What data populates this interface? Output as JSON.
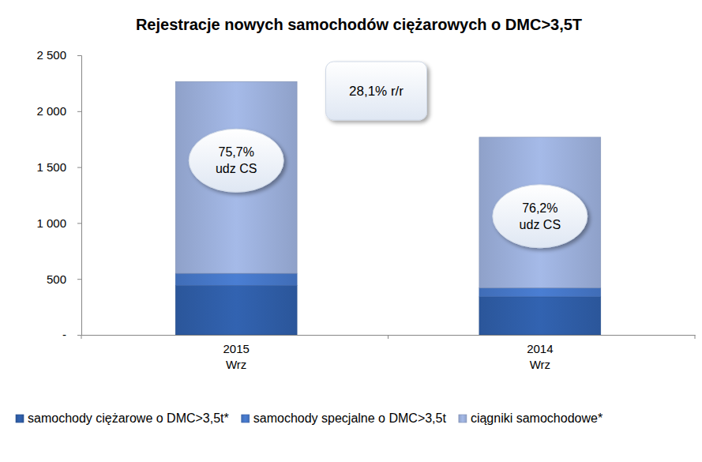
{
  "chart_data": {
    "type": "bar",
    "title": "Rejestracje nowych samochodów ciężarowych o DMC>3,5T",
    "categories": [
      "2015\nWrz",
      "2014\nWrz"
    ],
    "stacked": true,
    "grid": false,
    "legend": "bottom",
    "series": [
      {
        "name": "samochody ciężarowe o DMC>3,5t*",
        "color": "#2f5ea8",
        "values": [
          440,
          340
        ]
      },
      {
        "name": "samochody specjalne o DMC>3,5t",
        "color": "#4677c8",
        "values": [
          110,
          80
        ]
      },
      {
        "name": "ciągniki samochodowe*",
        "color": "#9cb0dc",
        "values": [
          1715,
          1347
        ]
      }
    ],
    "ylim": [
      0,
      2500
    ],
    "yticks": [
      {
        "value": 0,
        "label": "-"
      },
      500,
      {
        "value": 1000,
        "label": "1 000"
      },
      {
        "value": 1500,
        "label": "1 500"
      },
      {
        "value": 2000,
        "label": "2 000"
      },
      {
        "value": 2500,
        "label": "2 500"
      }
    ],
    "annotations": [
      "28,1% r/r"
    ],
    "category_annotations": [
      "75,7%\nudz CS",
      "76,2%\nudz CS"
    ]
  }
}
